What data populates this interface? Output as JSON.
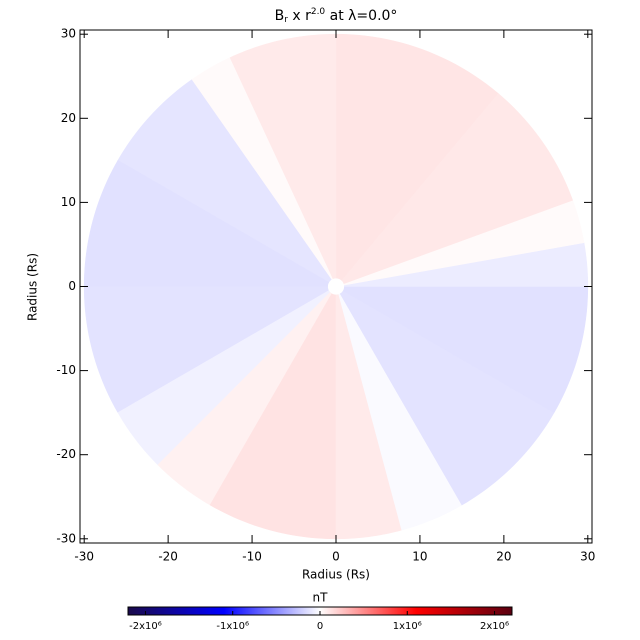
{
  "chart_data": {
    "type": "polar-heatmap",
    "title": [
      "B",
      "r",
      " x r",
      "2.0",
      " at λ=0.0°"
    ],
    "x_label": "Radius (Rs)",
    "y_label": "Radius (Rs)",
    "xlim": [
      -30.5,
      30.5
    ],
    "ylim": [
      -30.5,
      30.5
    ],
    "xticks": [
      -30,
      -20,
      -10,
      0,
      10,
      20,
      30
    ],
    "yticks": [
      -30,
      -20,
      -10,
      0,
      10,
      20,
      30
    ],
    "rlim": [
      1,
      30
    ],
    "theta_bins": [
      -75,
      -60,
      -30,
      0,
      10,
      20,
      50,
      90,
      115,
      125,
      150,
      180,
      210,
      225,
      240,
      270,
      285
    ],
    "values": [
      -20000,
      -120000,
      -130000,
      -80000,
      20000,
      100000,
      110000,
      90000,
      20000,
      -110000,
      -130000,
      -120000,
      -60000,
      60000,
      120000,
      90000
    ],
    "colorbar": {
      "label": "nT",
      "clim": [
        -2200000,
        2200000
      ],
      "colormap": [
        "#1a0a4a",
        "#0000ff",
        "#ffffff",
        "#ff0000",
        "#5a0010"
      ],
      "ticks": [
        {
          "value": -2000000,
          "label": "-2x10⁶"
        },
        {
          "value": -1000000,
          "label": "-1x10⁶"
        },
        0,
        {
          "value": 1000000,
          "label": "1x10⁶"
        },
        {
          "value": 2000000,
          "label": "2x10⁶"
        }
      ]
    }
  }
}
